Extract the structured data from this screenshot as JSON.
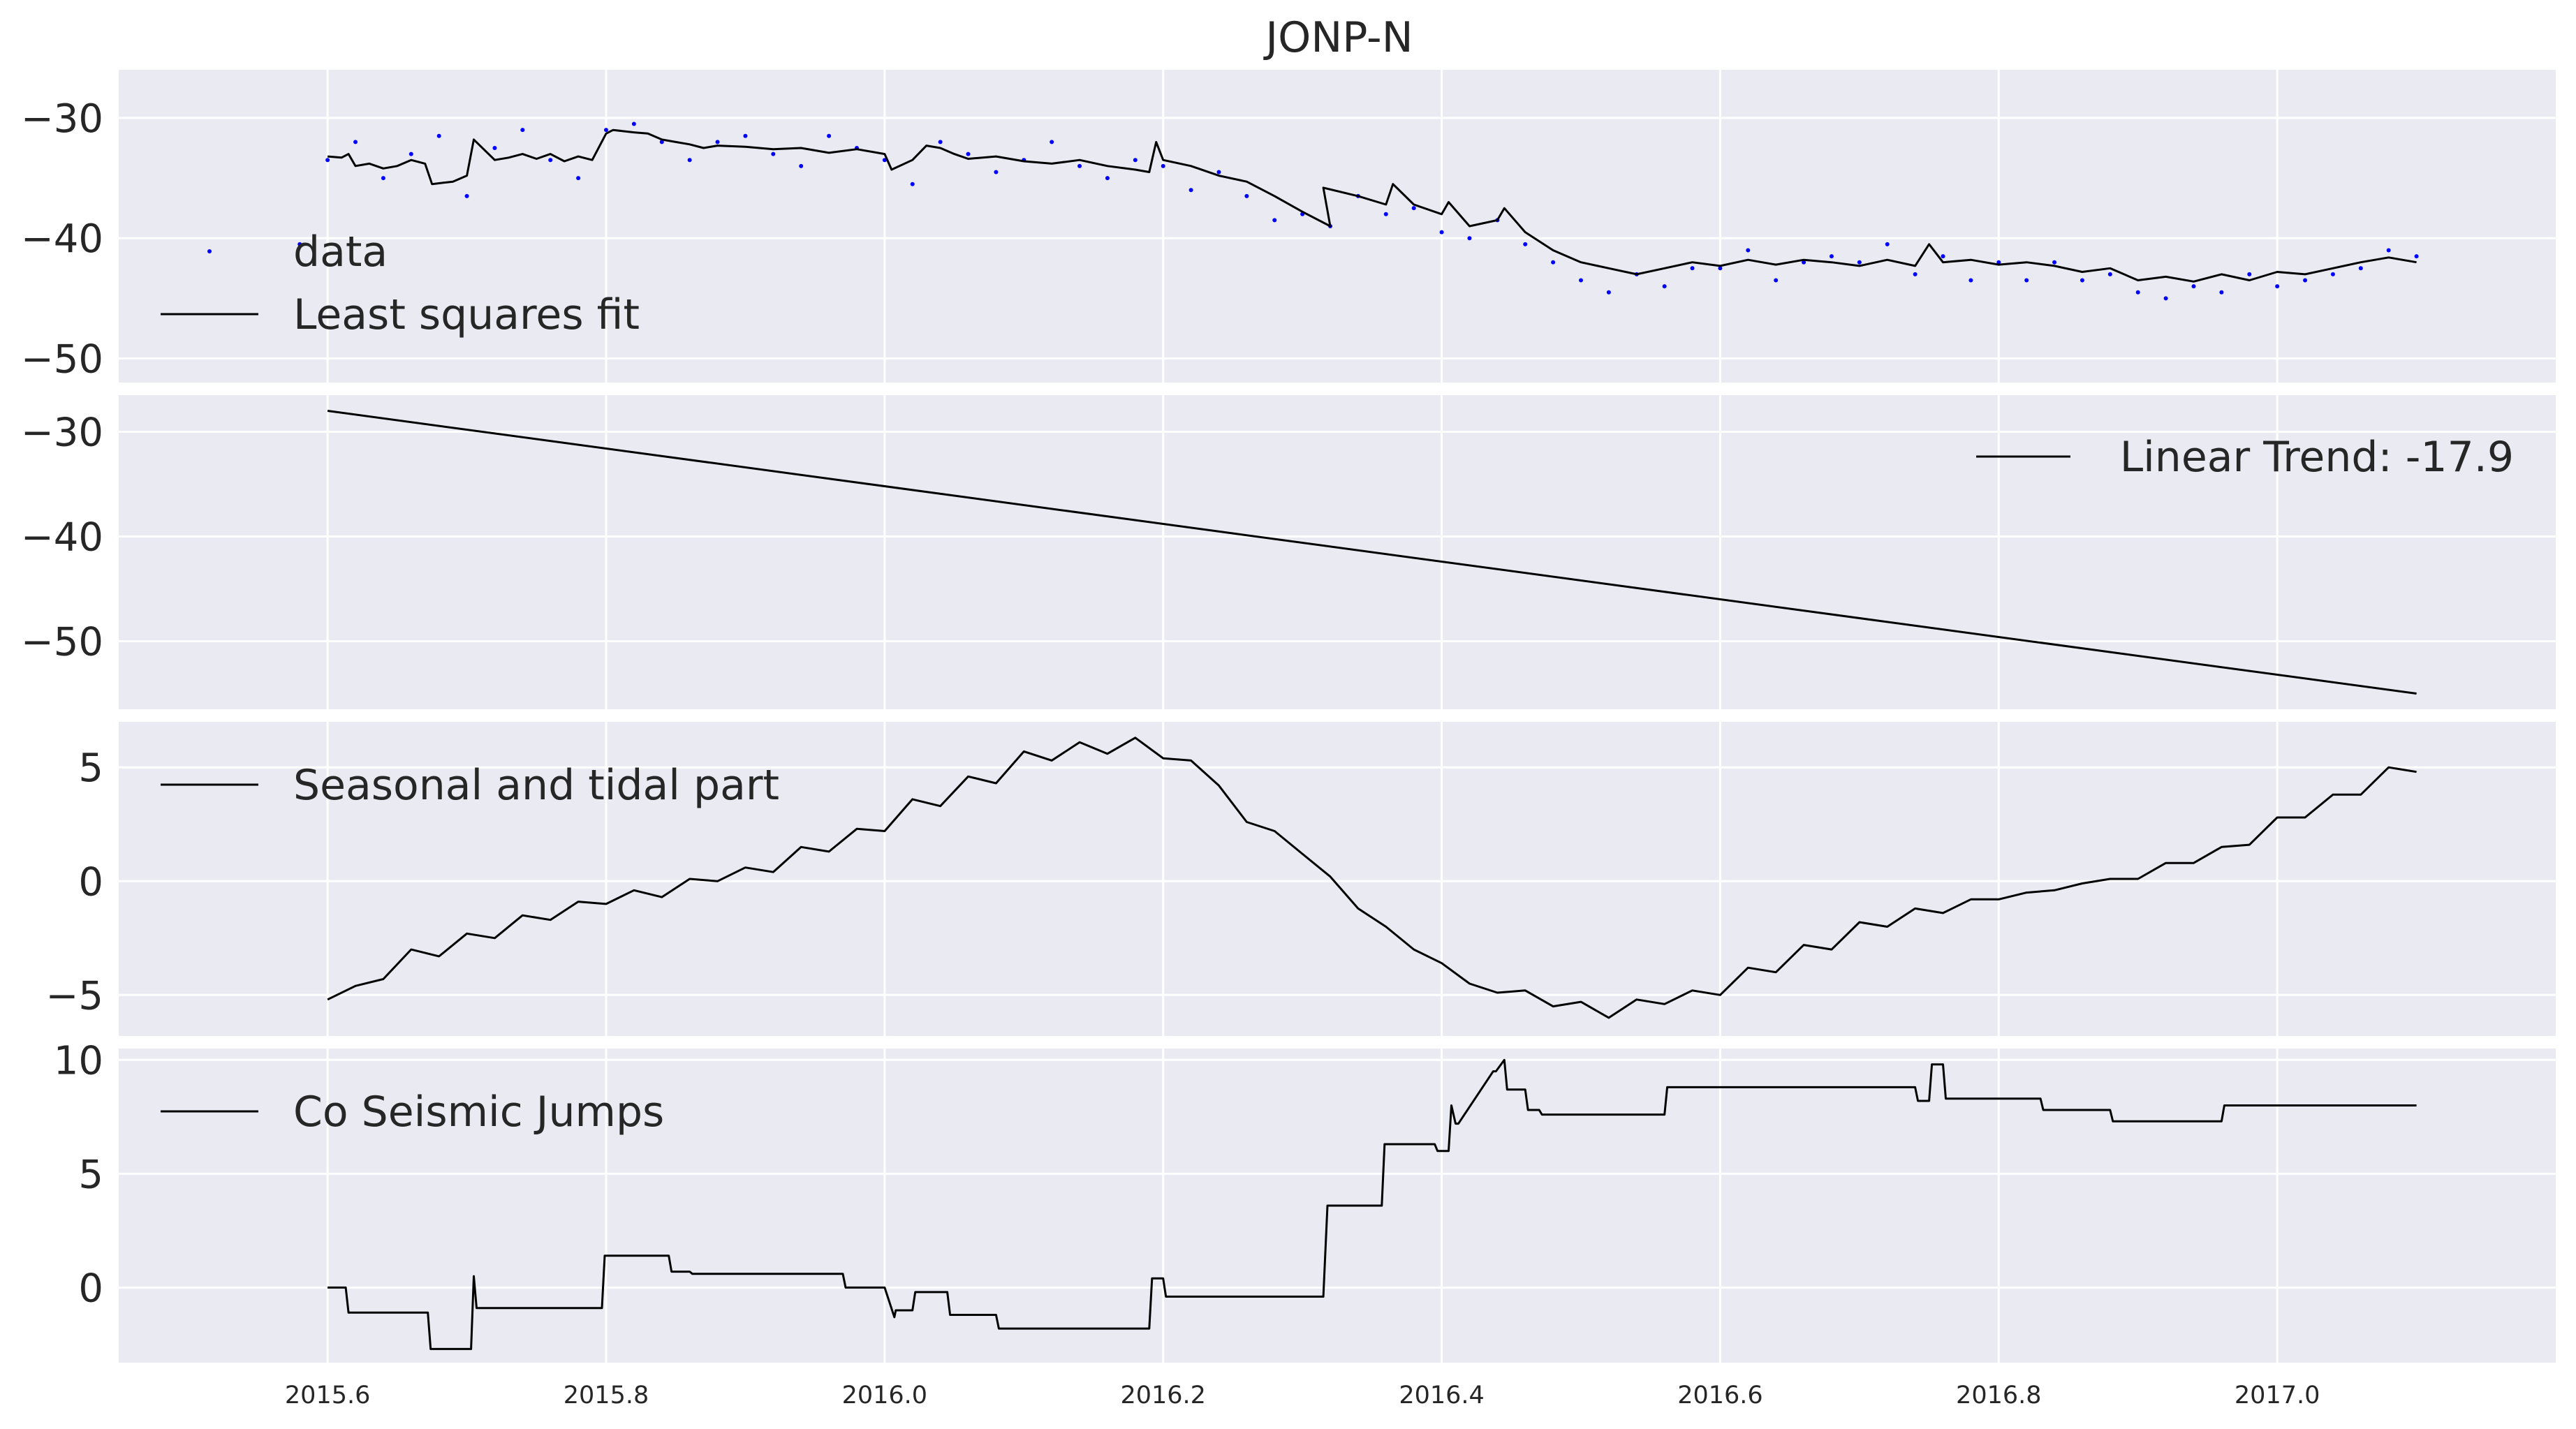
{
  "chart_data": {
    "title": "JONP-N",
    "shared_x_ticks": [
      "2015.6",
      "2015.8",
      "2016.0",
      "2016.2",
      "2016.4",
      "2016.6",
      "2016.8",
      "2017.0"
    ],
    "panels": [
      {
        "type": "line",
        "ylim": [
          -52,
          -26
        ],
        "yticks": [
          -30,
          -40,
          -50
        ],
        "ytick_labels": [
          "−30",
          "−40",
          "−50"
        ],
        "legend": [
          "data",
          "Least squares fit"
        ],
        "legend_placement": "lower-left",
        "series": [
          {
            "name": "data",
            "style": "points",
            "color": "#0000ff",
            "x": [
              2015.58,
              2015.6,
              2015.62,
              2015.64,
              2015.66,
              2015.68,
              2015.7,
              2015.72,
              2015.74,
              2015.76,
              2015.78,
              2015.8,
              2015.82,
              2015.84,
              2015.86,
              2015.88,
              2015.9,
              2015.92,
              2015.94,
              2015.96,
              2015.98,
              2016.0,
              2016.02,
              2016.04,
              2016.06,
              2016.08,
              2016.1,
              2016.12,
              2016.14,
              2016.16,
              2016.18,
              2016.2,
              2016.22,
              2016.24,
              2016.26,
              2016.28,
              2016.3,
              2016.32,
              2016.34,
              2016.36,
              2016.38,
              2016.4,
              2016.42,
              2016.44,
              2016.46,
              2016.48,
              2016.5,
              2016.52,
              2016.54,
              2016.56,
              2016.58,
              2016.6,
              2016.62,
              2016.64,
              2016.66,
              2016.68,
              2016.7,
              2016.72,
              2016.74,
              2016.76,
              2016.78,
              2016.8,
              2016.82,
              2016.84,
              2016.86,
              2016.88,
              2016.9,
              2016.92,
              2016.94,
              2016.96,
              2016.98,
              2017.0,
              2017.02,
              2017.04,
              2017.06,
              2017.08,
              2017.1
            ],
            "y": [
              -40.5,
              -33.5,
              -32.0,
              -35.0,
              -33.0,
              -31.5,
              -36.5,
              -32.5,
              -31.0,
              -33.5,
              -35.0,
              -31.0,
              -30.5,
              -32.0,
              -33.5,
              -32.0,
              -31.5,
              -33.0,
              -34.0,
              -31.5,
              -32.5,
              -33.5,
              -35.5,
              -32.0,
              -33.0,
              -34.5,
              -33.5,
              -32.0,
              -34.0,
              -35.0,
              -33.5,
              -34.0,
              -36.0,
              -34.5,
              -36.5,
              -38.5,
              -38.0,
              -39.0,
              -36.5,
              -38.0,
              -37.5,
              -39.5,
              -40.0,
              -38.5,
              -40.5,
              -42.0,
              -43.5,
              -44.5,
              -43.0,
              -44.0,
              -42.5,
              -42.5,
              -41.0,
              -43.5,
              -42.0,
              -41.5,
              -42.0,
              -40.5,
              -43.0,
              -41.5,
              -43.5,
              -42.0,
              -43.5,
              -42.0,
              -43.5,
              -43.0,
              -44.5,
              -45.0,
              -44.0,
              -44.5,
              -43.0,
              -44.0,
              -43.5,
              -43.0,
              -42.5,
              -41.0,
              -41.5
            ]
          },
          {
            "name": "Least squares fit",
            "style": "line",
            "color": "#000000",
            "x": [
              2015.6,
              2015.61,
              2015.615,
              2015.62,
              2015.63,
              2015.64,
              2015.65,
              2015.66,
              2015.67,
              2015.675,
              2015.69,
              2015.7,
              2015.705,
              2015.72,
              2015.73,
              2015.74,
              2015.75,
              2015.76,
              2015.77,
              2015.78,
              2015.79,
              2015.8,
              2015.805,
              2015.82,
              2015.83,
              2015.84,
              2015.85,
              2015.86,
              2015.87,
              2015.88,
              2015.9,
              2015.92,
              2015.94,
              2015.96,
              2015.98,
              2016.0,
              2016.005,
              2016.02,
              2016.03,
              2016.04,
              2016.05,
              2016.06,
              2016.08,
              2016.1,
              2016.12,
              2016.14,
              2016.16,
              2016.18,
              2016.19,
              2016.195,
              2016.2,
              2016.22,
              2016.24,
              2016.26,
              2016.28,
              2016.3,
              2016.32,
              2016.315,
              2016.34,
              2016.36,
              2016.365,
              2016.38,
              2016.4,
              2016.405,
              2016.42,
              2016.44,
              2016.445,
              2016.46,
              2016.48,
              2016.5,
              2016.52,
              2016.54,
              2016.56,
              2016.58,
              2016.6,
              2016.62,
              2016.64,
              2016.66,
              2016.68,
              2016.7,
              2016.72,
              2016.74,
              2016.75,
              2016.76,
              2016.78,
              2016.8,
              2016.82,
              2016.84,
              2016.86,
              2016.88,
              2016.9,
              2016.92,
              2016.94,
              2016.96,
              2016.98,
              2017.0,
              2017.02,
              2017.04,
              2017.06,
              2017.08,
              2017.1
            ],
            "y": [
              -33.2,
              -33.3,
              -33.0,
              -34.0,
              -33.8,
              -34.2,
              -34.0,
              -33.5,
              -33.8,
              -35.5,
              -35.3,
              -34.8,
              -31.8,
              -33.5,
              -33.3,
              -33.0,
              -33.4,
              -33.0,
              -33.6,
              -33.2,
              -33.5,
              -31.3,
              -31.0,
              -31.2,
              -31.3,
              -31.8,
              -32.0,
              -32.2,
              -32.5,
              -32.3,
              -32.4,
              -32.6,
              -32.5,
              -32.9,
              -32.6,
              -33.0,
              -34.3,
              -33.5,
              -32.3,
              -32.5,
              -33.0,
              -33.4,
              -33.2,
              -33.6,
              -33.8,
              -33.5,
              -34.0,
              -34.3,
              -34.5,
              -32.0,
              -33.5,
              -34.0,
              -34.8,
              -35.3,
              -36.5,
              -37.8,
              -39.0,
              -35.8,
              -36.5,
              -37.2,
              -35.5,
              -37.2,
              -38.0,
              -37.0,
              -39.0,
              -38.5,
              -37.5,
              -39.5,
              -41.0,
              -42.0,
              -42.5,
              -43.0,
              -42.5,
              -42.0,
              -42.3,
              -41.8,
              -42.2,
              -41.8,
              -42.0,
              -42.3,
              -41.8,
              -42.3,
              -40.5,
              -42.0,
              -41.8,
              -42.2,
              -42.0,
              -42.3,
              -42.8,
              -42.5,
              -43.5,
              -43.2,
              -43.6,
              -43.0,
              -43.5,
              -42.8,
              -43.0,
              -42.5,
              -42.0,
              -41.6,
              -42.0
            ]
          }
        ]
      },
      {
        "type": "line",
        "ylim": [
          -56.5,
          -26.5
        ],
        "yticks": [
          -30,
          -40,
          -50
        ],
        "ytick_labels": [
          "−30",
          "−40",
          "−50"
        ],
        "legend": [
          "Linear Trend: -17.9"
        ],
        "legend_placement": "upper-right",
        "series": [
          {
            "name": "Linear Trend: -17.9",
            "style": "line",
            "color": "#000000",
            "x": [
              2015.6,
              2017.1
            ],
            "y": [
              -28.0,
              -55.0
            ]
          }
        ]
      },
      {
        "type": "line",
        "ylim": [
          -6.8,
          7.0
        ],
        "yticks": [
          5,
          0,
          -5
        ],
        "ytick_labels": [
          "5",
          "0",
          "−5"
        ],
        "legend": [
          "Seasonal and tidal part"
        ],
        "legend_placement": "upper-left",
        "series": [
          {
            "name": "Seasonal and tidal part",
            "style": "line",
            "color": "#000000",
            "x": [
              2015.6,
              2015.62,
              2015.64,
              2015.66,
              2015.68,
              2015.7,
              2015.72,
              2015.74,
              2015.76,
              2015.78,
              2015.8,
              2015.82,
              2015.84,
              2015.86,
              2015.88,
              2015.9,
              2015.92,
              2015.94,
              2015.96,
              2015.98,
              2016.0,
              2016.02,
              2016.04,
              2016.06,
              2016.08,
              2016.1,
              2016.12,
              2016.14,
              2016.16,
              2016.18,
              2016.2,
              2016.22,
              2016.24,
              2016.26,
              2016.28,
              2016.3,
              2016.32,
              2016.34,
              2016.36,
              2016.38,
              2016.4,
              2016.42,
              2016.44,
              2016.46,
              2016.48,
              2016.5,
              2016.52,
              2016.54,
              2016.56,
              2016.58,
              2016.6,
              2016.62,
              2016.64,
              2016.66,
              2016.68,
              2016.7,
              2016.72,
              2016.74,
              2016.76,
              2016.78,
              2016.8,
              2016.82,
              2016.84,
              2016.86,
              2016.88,
              2016.9,
              2016.92,
              2016.94,
              2016.96,
              2016.98,
              2017.0,
              2017.02,
              2017.04,
              2017.06,
              2017.08,
              2017.1
            ],
            "y": [
              -5.2,
              -4.6,
              -4.3,
              -3.0,
              -3.3,
              -2.3,
              -2.5,
              -1.5,
              -1.7,
              -0.9,
              -1.0,
              -0.4,
              -0.7,
              0.1,
              0.0,
              0.6,
              0.4,
              1.5,
              1.3,
              2.3,
              2.2,
              3.6,
              3.3,
              4.6,
              4.3,
              5.7,
              5.3,
              6.1,
              5.6,
              6.3,
              5.4,
              5.3,
              4.2,
              2.6,
              2.2,
              1.2,
              0.2,
              -1.2,
              -2.0,
              -3.0,
              -3.6,
              -4.5,
              -4.9,
              -4.8,
              -5.5,
              -5.3,
              -6.0,
              -5.2,
              -5.4,
              -4.8,
              -5.0,
              -3.8,
              -4.0,
              -2.8,
              -3.0,
              -1.8,
              -2.0,
              -1.2,
              -1.4,
              -0.8,
              -0.8,
              -0.5,
              -0.4,
              -0.1,
              0.1,
              0.1,
              0.8,
              0.8,
              1.5,
              1.6,
              2.8,
              2.8,
              3.8,
              3.8,
              5.0,
              4.8
            ]
          }
        ]
      },
      {
        "type": "line",
        "ylim": [
          -3.3,
          10.5
        ],
        "yticks": [
          10,
          5,
          0
        ],
        "ytick_labels": [
          "10",
          "5",
          "0"
        ],
        "legend": [
          "Co Seismic Jumps"
        ],
        "legend_placement": "upper-left",
        "series": [
          {
            "name": "Co Seismic Jumps",
            "style": "line",
            "color": "#000000",
            "x": [
              2015.6,
              2015.613,
              2015.615,
              2015.672,
              2015.674,
              2015.703,
              2015.705,
              2015.707,
              2015.797,
              2015.799,
              2015.845,
              2015.847,
              2015.86,
              2015.862,
              2015.92,
              2015.9,
              2015.93,
              2015.97,
              2015.972,
              2016.0,
              2016.007,
              2016.008,
              2016.02,
              2016.022,
              2016.045,
              2016.047,
              2016.08,
              2016.082,
              2016.19,
              2016.192,
              2016.2,
              2016.202,
              2016.315,
              2016.318,
              2016.357,
              2016.359,
              2016.395,
              2016.397,
              2016.405,
              2016.407,
              2016.41,
              2016.412,
              2016.437,
              2016.439,
              2016.445,
              2016.447,
              2016.448,
              2016.46,
              2016.462,
              2016.47,
              2016.472,
              2016.56,
              2016.562,
              2016.74,
              2016.742,
              2016.75,
              2016.752,
              2016.76,
              2016.762,
              2016.83,
              2016.832,
              2016.88,
              2016.882,
              2016.96,
              2016.962,
              2017.1
            ],
            "y": [
              0.0,
              0.0,
              -1.1,
              -1.1,
              -2.7,
              -2.7,
              0.5,
              -0.9,
              -0.9,
              1.4,
              1.4,
              0.7,
              0.7,
              0.6,
              0.6,
              0.6,
              0.6,
              0.6,
              0.0,
              0.0,
              -1.3,
              -1.0,
              -1.0,
              -0.2,
              -0.2,
              -1.2,
              -1.2,
              -1.8,
              -1.8,
              0.4,
              0.4,
              -0.4,
              -0.4,
              3.6,
              3.6,
              6.3,
              6.3,
              6.0,
              6.0,
              8.0,
              7.2,
              7.2,
              9.5,
              9.5,
              10.0,
              8.7,
              8.7,
              8.7,
              7.8,
              7.8,
              7.6,
              7.6,
              8.8,
              8.8,
              8.2,
              8.2,
              9.8,
              9.8,
              8.3,
              8.3,
              7.8,
              7.8,
              7.3,
              7.3,
              8.0,
              8.0
            ]
          }
        ]
      }
    ]
  }
}
